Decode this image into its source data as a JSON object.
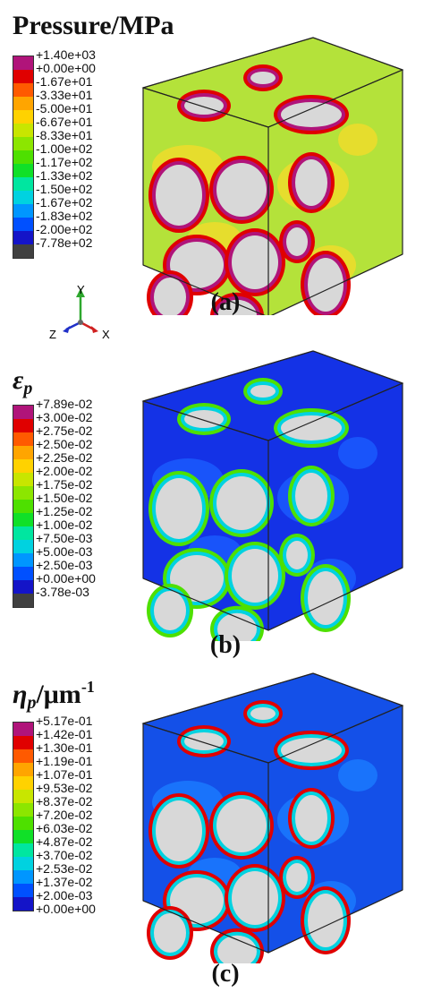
{
  "panels": [
    {
      "id": "a",
      "title": "Pressure/MPa",
      "caption": "(a)",
      "legend": [
        "+1.40e+03",
        "+0.00e+00",
        "-1.67e+01",
        "-3.33e+01",
        "-5.00e+01",
        "-6.67e+01",
        "-8.33e+01",
        "-1.00e+02",
        "-1.17e+02",
        "-1.33e+02",
        "-1.50e+02",
        "-1.67e+02",
        "-1.83e+02",
        "-2.00e+02",
        "-7.78e+02"
      ],
      "colors": [
        "#b0147a",
        "#e00000",
        "#ff5a00",
        "#ffa500",
        "#ffd200",
        "#c8e600",
        "#8ce600",
        "#4ee000",
        "#10e028",
        "#00e6a0",
        "#00d2e0",
        "#0096ff",
        "#0050ff",
        "#1414c8",
        "#404040"
      ]
    },
    {
      "id": "b",
      "title": "ε",
      "title_sub": "p",
      "caption": "(b)",
      "legend": [
        "+7.89e-02",
        "+3.00e-02",
        "+2.75e-02",
        "+2.50e-02",
        "+2.25e-02",
        "+2.00e-02",
        "+1.75e-02",
        "+1.50e-02",
        "+1.25e-02",
        "+1.00e-02",
        "+7.50e-03",
        "+5.00e-03",
        "+2.50e-03",
        "+0.00e+00",
        "-3.78e-03"
      ],
      "colors": [
        "#b0147a",
        "#e00000",
        "#ff5a00",
        "#ffa500",
        "#ffd200",
        "#c8e600",
        "#8ce600",
        "#4ee000",
        "#10e028",
        "#00e6a0",
        "#00d2e0",
        "#0096ff",
        "#0050ff",
        "#1414c8",
        "#404040"
      ]
    },
    {
      "id": "c",
      "title": "η",
      "title_sub": "p",
      "title_rest": "/μm",
      "title_sup": "-1",
      "caption": "(c)",
      "legend": [
        "+5.17e-01",
        "+1.42e-01",
        "+1.30e-01",
        "+1.19e-01",
        "+1.07e-01",
        "+9.53e-02",
        "+8.37e-02",
        "+7.20e-02",
        "+6.03e-02",
        "+4.87e-02",
        "+3.70e-02",
        "+2.53e-02",
        "+1.37e-02",
        "+2.00e-03",
        "+0.00e+00"
      ],
      "colors": [
        "#b0147a",
        "#e00000",
        "#ff5a00",
        "#ffa500",
        "#ffd200",
        "#c8e600",
        "#8ce600",
        "#4ee000",
        "#10e028",
        "#00e6a0",
        "#00d2e0",
        "#0096ff",
        "#0050ff",
        "#1414c8"
      ]
    }
  ],
  "axes": {
    "y": "Y",
    "z": "Z",
    "x": "X"
  },
  "cube_colors": {
    "a": {
      "base": "#b4e23a",
      "patch": "#f2dc2a",
      "ring": "#b0147a",
      "ring2": "#e00000",
      "particle": "#d8d8d8"
    },
    "b": {
      "base": "#1432e6",
      "patch": "#1a5cff",
      "ring": "#00d2e0",
      "ring2": "#4ee000",
      "particle": "#d8d8d8"
    },
    "c": {
      "base": "#1450e8",
      "patch": "#1a7cff",
      "ring": "#00d2e0",
      "ring2": "#e00000",
      "particle": "#d8d8d8"
    }
  }
}
